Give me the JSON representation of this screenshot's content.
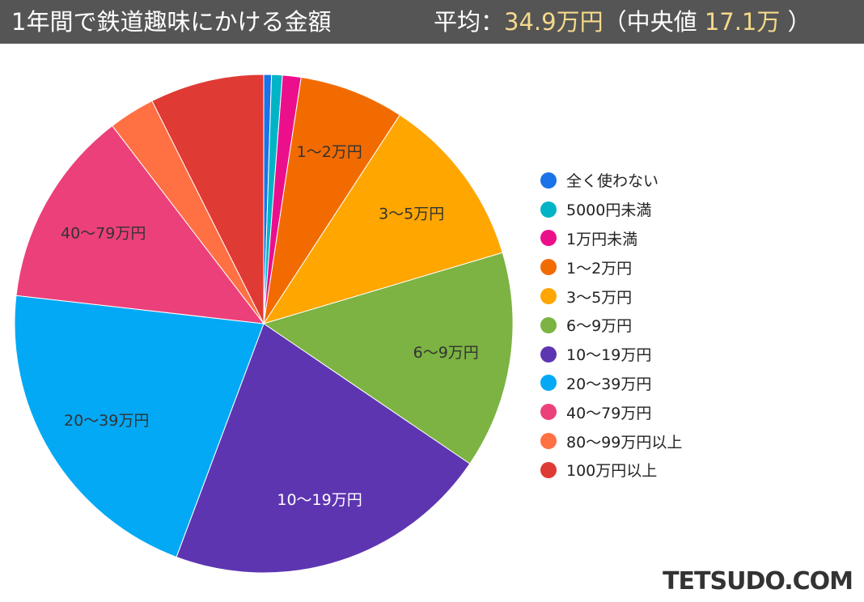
{
  "header": {
    "title": "1年間で鉄道趣味にかける金額",
    "avg_label": "平均：",
    "avg_value": "34.9万円",
    "median_open": "（中央値 ",
    "median_value": "17.1万",
    "median_close": " ）"
  },
  "logo": "TETSUDO.COM",
  "chart_data": {
    "type": "pie",
    "start": "top",
    "direction": "clockwise",
    "legend_position": "right",
    "categories": [
      "全く使わない",
      "5000円未満",
      "1万円未満",
      "1〜2万円",
      "3〜5万円",
      "6〜9万円",
      "10〜19万円",
      "20〜39万円",
      "40〜79万円",
      "80〜99万円以上",
      "100万円以上"
    ],
    "values": [
      0.5,
      0.7,
      1.2,
      6.8,
      11.2,
      14.1,
      21.2,
      21.1,
      12.8,
      3.0,
      7.4
    ],
    "slice_labels": [
      null,
      null,
      null,
      "1〜2万円",
      "3〜5万円",
      "6〜9万円",
      "10〜19万円",
      "20〜39万円",
      "40〜79万円",
      null,
      null
    ],
    "colors": [
      "#1a73e8",
      "#00b4c6",
      "#ec0f8c",
      "#f26b00",
      "#ffa600",
      "#7cb342",
      "#5e35b1",
      "#03a9f4",
      "#ec407a",
      "#ff7043",
      "#e03a35"
    ]
  }
}
